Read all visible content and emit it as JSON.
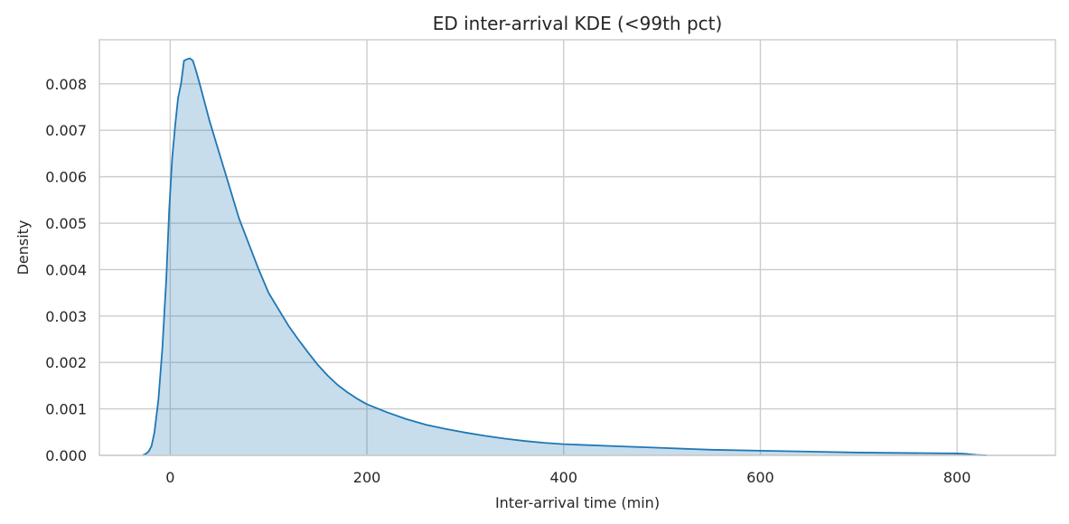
{
  "chart_data": {
    "type": "area",
    "title": "ED inter-arrival KDE (<99th pct)",
    "xlabel": "Inter-arrival time (min)",
    "ylabel": "Density",
    "xlim": [
      -72,
      900
    ],
    "ylim": [
      0,
      0.00895
    ],
    "xticks": [
      0,
      200,
      400,
      600,
      800
    ],
    "yticks": [
      0.0,
      0.001,
      0.002,
      0.003,
      0.004,
      0.005,
      0.006,
      0.007,
      0.008
    ],
    "xtick_labels": [
      "0",
      "200",
      "400",
      "600",
      "800"
    ],
    "ytick_labels": [
      "0.000",
      "0.001",
      "0.002",
      "0.003",
      "0.004",
      "0.005",
      "0.006",
      "0.007",
      "0.008"
    ],
    "grid": true,
    "colors": {
      "line": "#1f77b4",
      "fill": "#1f77b4",
      "fill_opacity": 0.25,
      "grid": "#cccccc"
    },
    "series": [
      {
        "x": [
          -28,
          -25,
          -22,
          -19,
          -16,
          -12,
          -8,
          -4,
          -1,
          2,
          5,
          8,
          11,
          14,
          17,
          20,
          23,
          26,
          30,
          35,
          40,
          50,
          60,
          70,
          80,
          90,
          100,
          110,
          120,
          130,
          140,
          150,
          160,
          170,
          180,
          190,
          200,
          220,
          240,
          260,
          280,
          300,
          320,
          340,
          360,
          380,
          400,
          450,
          500,
          550,
          600,
          650,
          700,
          750,
          800,
          810,
          820,
          830
        ],
        "y": [
          0.0,
          3e-05,
          8e-05,
          0.0002,
          0.0005,
          0.0012,
          0.0023,
          0.0038,
          0.0053,
          0.0064,
          0.0071,
          0.0077,
          0.008,
          0.0085,
          0.00853,
          0.00855,
          0.0085,
          0.0083,
          0.008,
          0.0076,
          0.0072,
          0.0065,
          0.0058,
          0.0051,
          0.00455,
          0.004,
          0.0035,
          0.00315,
          0.0028,
          0.0025,
          0.00222,
          0.00195,
          0.00172,
          0.00152,
          0.00136,
          0.00122,
          0.0011,
          0.00093,
          0.00078,
          0.00066,
          0.00057,
          0.00049,
          0.00042,
          0.00036,
          0.00031,
          0.00027,
          0.00024,
          0.0002,
          0.00016,
          0.00012,
          0.0001,
          8e-05,
          6e-05,
          5e-05,
          4e-05,
          3e-05,
          1e-05,
          0.0
        ]
      }
    ]
  }
}
